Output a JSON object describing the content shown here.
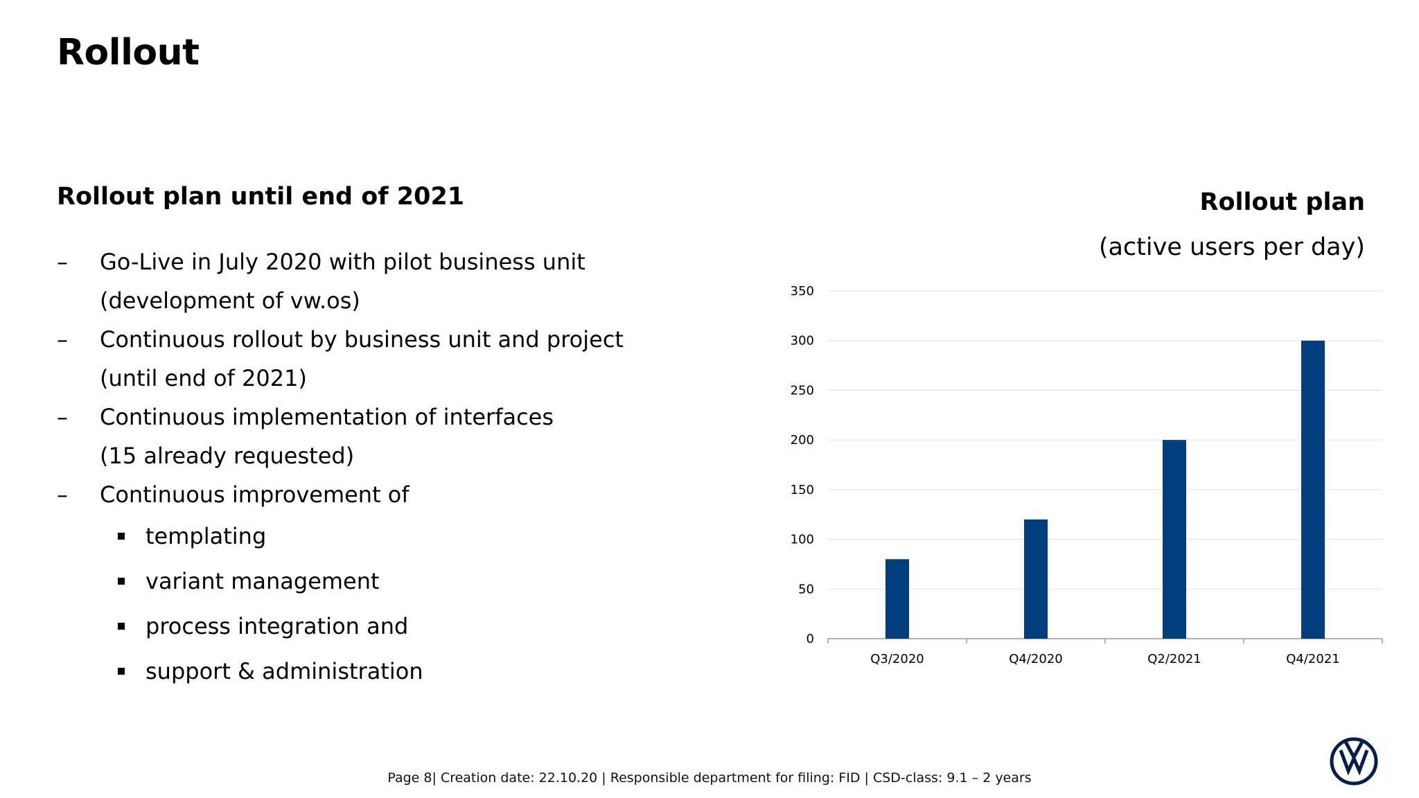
{
  "page": {
    "title": "Rollout",
    "subtitle": "Rollout plan until end of 2021",
    "footer": "Page 8| Creation date: 22.10.20 | Responsible department for filing: FID | CSD-class: 9.1 – 2 years"
  },
  "bullets": [
    {
      "marker": "–",
      "text": "Go-Live in July 2020 with pilot business unit",
      "text2": "(development of vw.os)"
    },
    {
      "marker": "–",
      "text": "Continuous rollout by business unit and project",
      "text2": "(until end of 2021)"
    },
    {
      "marker": "–",
      "text": "Continuous implementation of interfaces",
      "text2": "(15 already requested)"
    },
    {
      "marker": "–",
      "text": "Continuous improvement of"
    }
  ],
  "subbullets": [
    "templating",
    "variant management",
    "process integration and",
    "support & administration"
  ],
  "chart_title": "Rollout plan",
  "chart_subtitle": "(active users per day)",
  "colors": {
    "bar": "#003f7d",
    "grid": "#e0e0e0",
    "axis": "#9a9a9a",
    "logo": "#001e50"
  },
  "chart_data": {
    "type": "bar",
    "title": "Rollout plan",
    "subtitle": "(active users per day)",
    "categories": [
      "Q3/2020",
      "Q4/2020",
      "Q2/2021",
      "Q4/2021"
    ],
    "values": [
      80,
      120,
      200,
      300
    ],
    "ylim": [
      0,
      350
    ],
    "yticks": [
      0,
      50,
      100,
      150,
      200,
      250,
      300,
      350
    ],
    "grid": true,
    "legend": "none"
  }
}
